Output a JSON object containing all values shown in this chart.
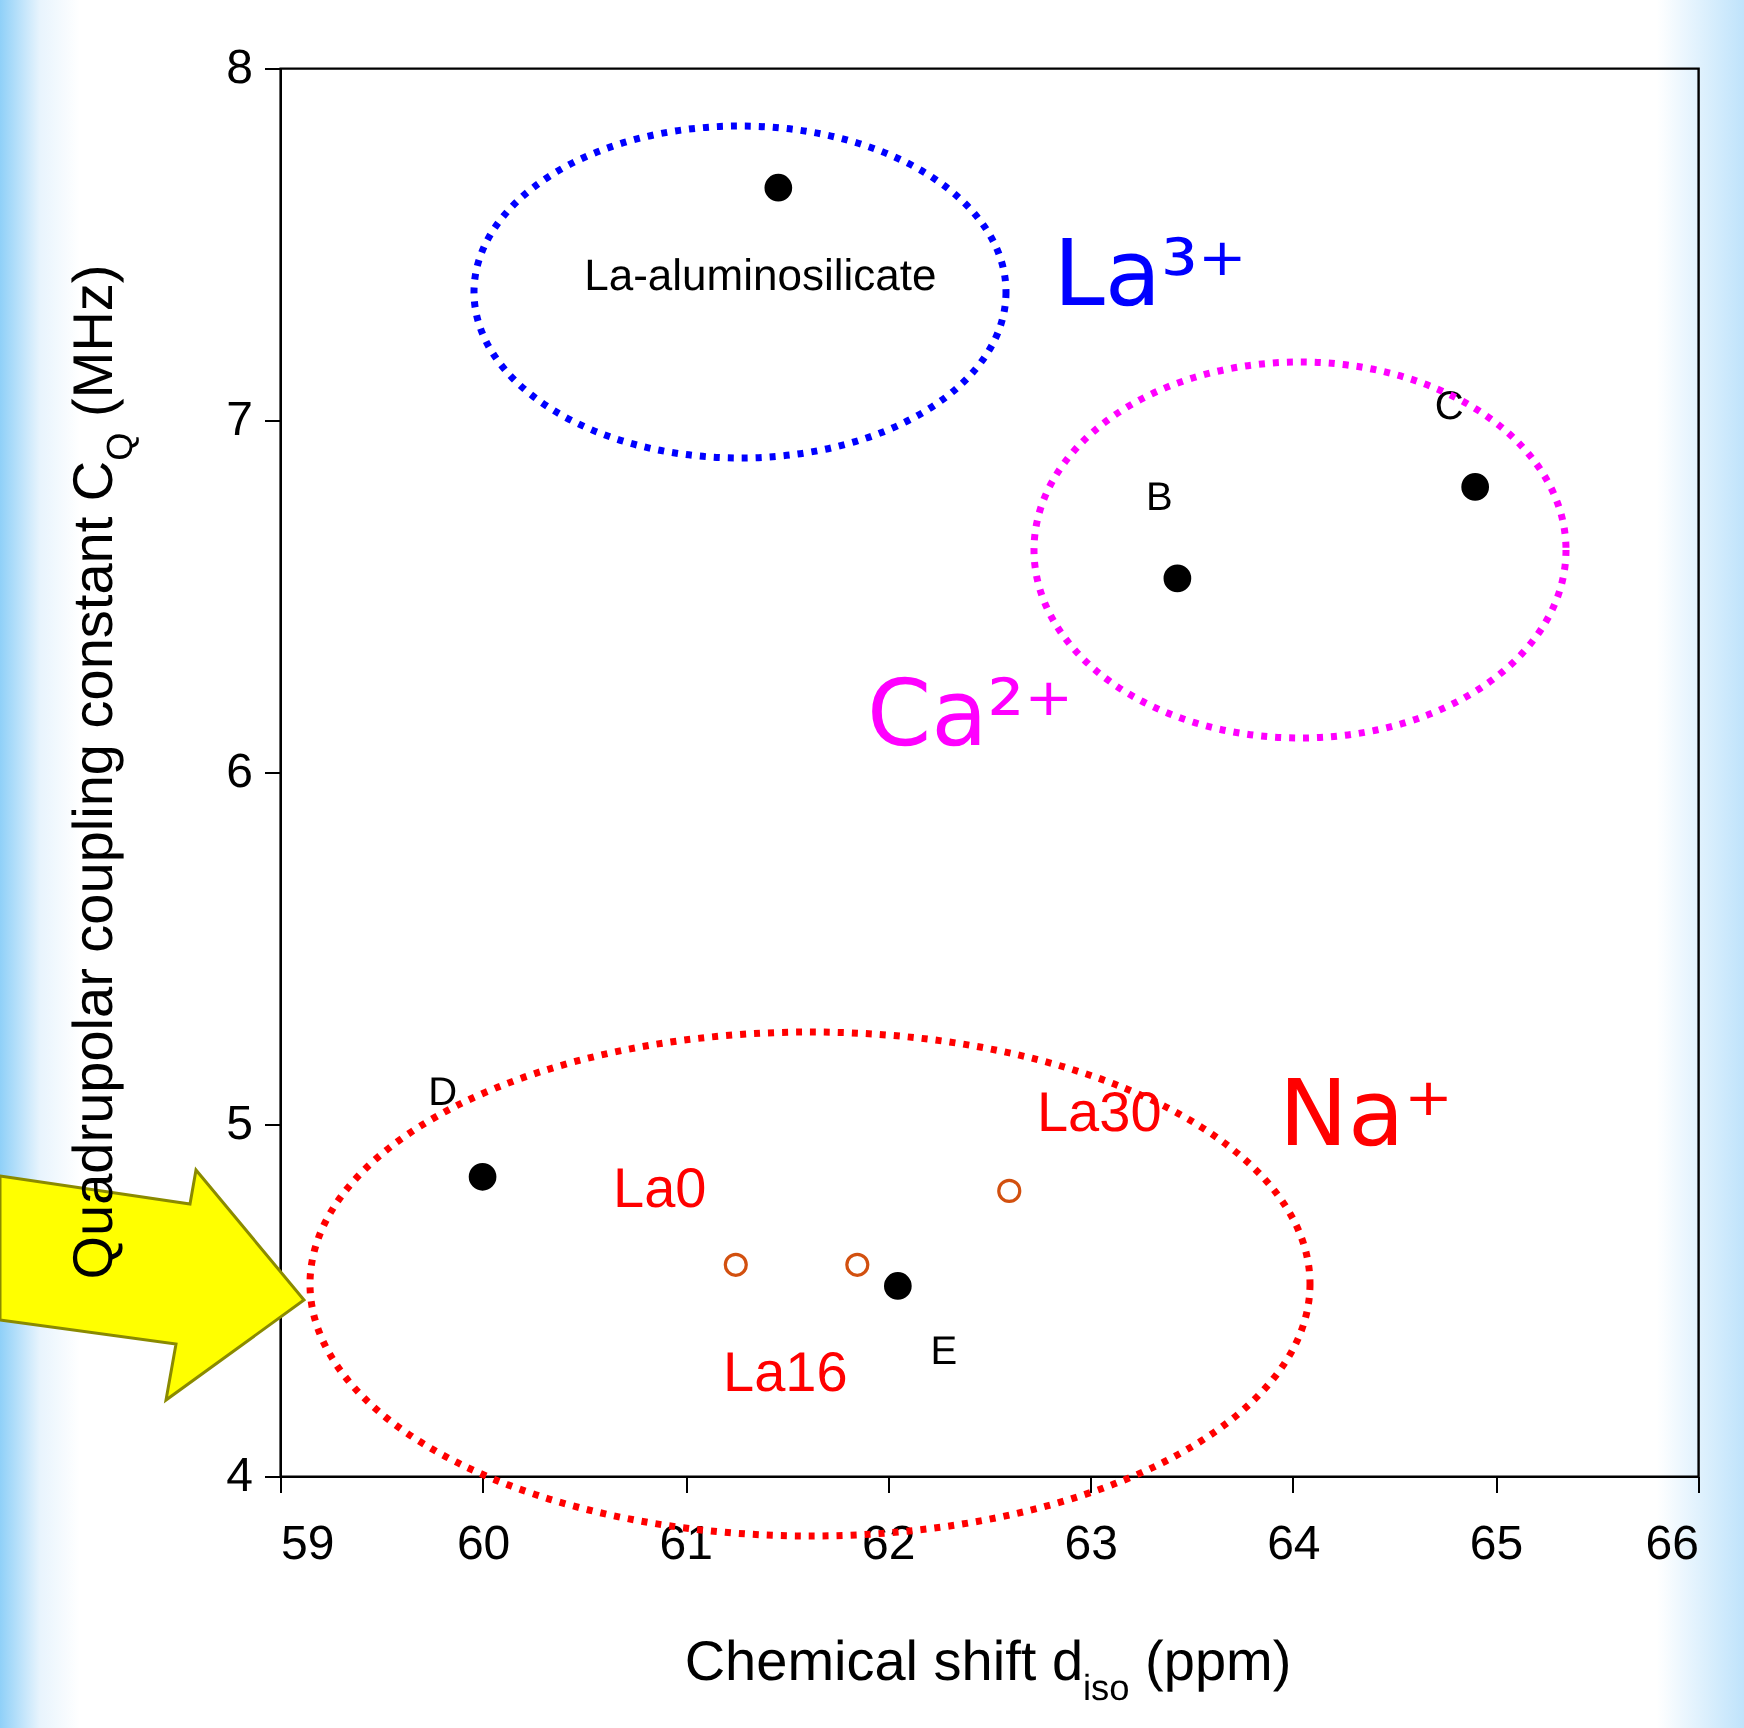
{
  "chart_data": {
    "type": "scatter",
    "xlabel": "Chemical shift d$_{iso}$ (ppm)",
    "ylabel": "Quadrupolar coupling constant C$_{Q}$ (MHz)",
    "xlim": [
      59,
      66
    ],
    "xticks": [
      59,
      60,
      61,
      62,
      63,
      64,
      65,
      66
    ],
    "ylim": [
      4,
      8
    ],
    "yticks": [
      4,
      5,
      6,
      7,
      8
    ],
    "grid": false,
    "marker": "circle",
    "series": [
      {
        "color": "#000000",
        "type": "scatter",
        "x": [
          61.46,
          63.43,
          64.9,
          60.0,
          62.05
        ],
        "values": [
          7.66,
          6.55,
          6.81,
          4.85,
          4.54
        ]
      },
      {
        "color": "#d2500f",
        "type": "scatter",
        "x": [
          61.25,
          61.85,
          62.6
        ],
        "values": [
          4.6,
          4.6,
          4.81
        ]
      }
    ],
    "annotations": [
      {
        "text": "La-aluminosilicate",
        "x": 61.46,
        "y": 7.66
      },
      {
        "text": "B",
        "x": 63.43,
        "y": 6.55
      },
      {
        "text": "C",
        "x": 64.9,
        "y": 6.81
      },
      {
        "text": "D",
        "x": 60.0,
        "y": 4.85
      },
      {
        "text": "E",
        "x": 62.05,
        "y": 4.54
      },
      {
        "text": "La0",
        "x": 61.25,
        "y": 4.6
      },
      {
        "text": "La16",
        "x": 61.85,
        "y": 4.6
      },
      {
        "text": "La30",
        "x": 62.6,
        "y": 4.81
      },
      "La³⁺",
      "Ca²⁺",
      "Na⁺"
    ]
  }
}
